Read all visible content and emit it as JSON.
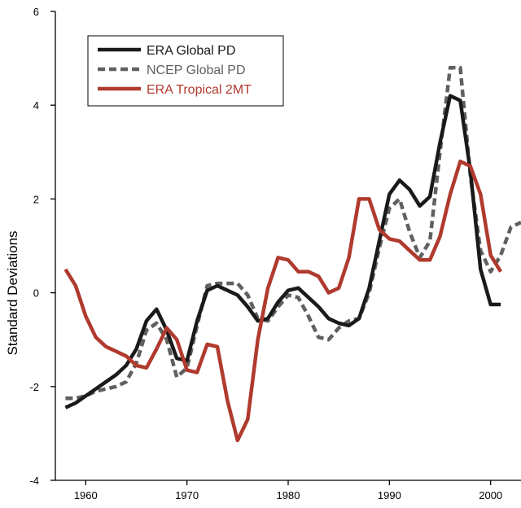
{
  "chart_data": {
    "type": "line",
    "title": "",
    "xlabel": "",
    "ylabel": "Standard Deviations",
    "xlim": [
      1957,
      2003
    ],
    "ylim": [
      -4,
      6
    ],
    "xticks": [
      1960,
      1970,
      1980,
      1990,
      2000
    ],
    "yticks": [
      -4,
      -2,
      0,
      2,
      4,
      6
    ],
    "x_tick_labels": [
      "1960",
      "1970",
      "1980",
      "1990",
      "2000"
    ],
    "y_tick_labels": [
      "-4",
      "-2",
      "0",
      "2",
      "4",
      "6"
    ],
    "grid": false,
    "legend_position": "top-left",
    "series": [
      {
        "name": "ERA Global PD",
        "color": "#1a1a1a",
        "style": "solid",
        "x": [
          1958,
          1959,
          1960,
          1961,
          1962,
          1963,
          1964,
          1965,
          1966,
          1967,
          1968,
          1969,
          1970,
          1971,
          1972,
          1973,
          1974,
          1975,
          1976,
          1977,
          1978,
          1979,
          1980,
          1981,
          1982,
          1983,
          1984,
          1985,
          1986,
          1987,
          1988,
          1989,
          1990,
          1991,
          1992,
          1993,
          1994,
          1995,
          1996,
          1997,
          1998,
          1999,
          2000,
          2001
        ],
        "y": [
          -2.45,
          -2.35,
          -2.2,
          -2.05,
          -1.9,
          -1.75,
          -1.55,
          -1.2,
          -0.6,
          -0.35,
          -0.8,
          -1.4,
          -1.45,
          -0.6,
          0.05,
          0.15,
          0.05,
          -0.05,
          -0.3,
          -0.6,
          -0.55,
          -0.2,
          0.05,
          0.1,
          -0.1,
          -0.3,
          -0.55,
          -0.65,
          -0.7,
          -0.55,
          0.1,
          1.1,
          2.1,
          2.4,
          2.2,
          1.85,
          2.05,
          3.2,
          4.2,
          4.1,
          2.6,
          0.5,
          -0.25,
          -0.25
        ]
      },
      {
        "name": "NCEP Global PD",
        "color": "#606060",
        "style": "dashed",
        "x": [
          1958,
          1959,
          1960,
          1961,
          1962,
          1963,
          1964,
          1965,
          1966,
          1967,
          1968,
          1969,
          1970,
          1971,
          1972,
          1973,
          1974,
          1975,
          1976,
          1977,
          1978,
          1979,
          1980,
          1981,
          1982,
          1983,
          1984,
          1985,
          1986,
          1987,
          1988,
          1989,
          1990,
          1991,
          1992,
          1993,
          1994,
          1995,
          1996,
          1997,
          1998,
          1999,
          2000,
          2001,
          2002,
          2003
        ],
        "y": [
          -2.25,
          -2.25,
          -2.2,
          -2.1,
          -2.05,
          -2.0,
          -1.9,
          -1.5,
          -0.8,
          -0.65,
          -1.0,
          -1.8,
          -1.6,
          -0.7,
          0.15,
          0.2,
          0.2,
          0.2,
          -0.05,
          -0.55,
          -0.6,
          -0.3,
          -0.05,
          -0.1,
          -0.5,
          -0.95,
          -1.0,
          -0.75,
          -0.6,
          -0.55,
          0.0,
          0.95,
          1.8,
          2.0,
          1.3,
          0.75,
          1.1,
          3.0,
          4.8,
          4.8,
          2.5,
          0.9,
          0.45,
          0.8,
          1.4,
          1.5
        ]
      },
      {
        "name": "ERA Tropical 2MT",
        "color": "#b03a2e",
        "style": "solid",
        "x": [
          1958,
          1959,
          1960,
          1961,
          1962,
          1963,
          1964,
          1965,
          1966,
          1967,
          1968,
          1969,
          1970,
          1971,
          1972,
          1973,
          1974,
          1975,
          1976,
          1977,
          1978,
          1979,
          1980,
          1981,
          1982,
          1983,
          1984,
          1985,
          1986,
          1987,
          1988,
          1989,
          1990,
          1991,
          1992,
          1993,
          1994,
          1995,
          1996,
          1997,
          1998,
          1999,
          2000,
          2001
        ],
        "y": [
          0.5,
          0.15,
          -0.5,
          -0.95,
          -1.15,
          -1.25,
          -1.35,
          -1.55,
          -1.6,
          -1.2,
          -0.75,
          -1.0,
          -1.65,
          -1.7,
          -1.1,
          -1.15,
          -2.3,
          -3.15,
          -2.7,
          -1.0,
          0.1,
          0.75,
          0.7,
          0.45,
          0.45,
          0.35,
          0.0,
          0.1,
          0.75,
          2.0,
          2.0,
          1.35,
          1.15,
          1.1,
          0.9,
          0.7,
          0.7,
          1.2,
          2.1,
          2.8,
          2.7,
          2.1,
          0.8,
          0.45
        ]
      }
    ]
  }
}
